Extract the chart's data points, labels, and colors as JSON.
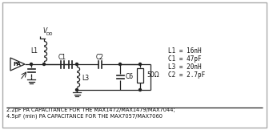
{
  "bg_color": "#e8e8e8",
  "border_color": "#888888",
  "line_color": "#222222",
  "text_color": "#111111",
  "caption_line1": "2.2pF PA CAPACITANCE FOR THE MAX1472/MAX1479/MAX7044;",
  "caption_line2": "4.5pF (min) PA CAPACITANCE FOR THE MAX7057/MAX7060",
  "legend_lines": [
    "L1 = 16nH",
    "C1 = 47pF",
    "L3 = 20nH",
    "C2 = 2.7pF"
  ],
  "figsize": [
    3.36,
    1.62
  ],
  "dpi": 100
}
